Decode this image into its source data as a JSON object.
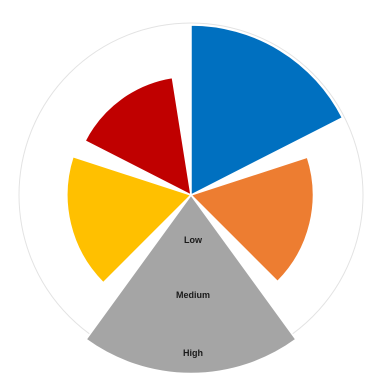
{
  "chart_data": {
    "type": "pie",
    "variant": "polar-area",
    "outer_ring": true,
    "slices": [
      {
        "start_deg": 0,
        "end_deg": 63,
        "value": 1.0,
        "color": "#0070C0"
      },
      {
        "start_deg": 72,
        "end_deg": 135,
        "value": 0.72,
        "color": "#ED7D31"
      },
      {
        "start_deg": 144,
        "end_deg": 216,
        "value": 1.05,
        "color": "#A5A5A5"
      },
      {
        "start_deg": 225,
        "end_deg": 288,
        "value": 0.73,
        "color": "#FFC000"
      },
      {
        "start_deg": 297,
        "end_deg": 351,
        "value": 0.7,
        "color": "#C00000"
      }
    ],
    "scale_labels": [
      "Low",
      "Medium",
      "High"
    ],
    "scale_levels": [
      0.33,
      0.67,
      1.0
    ]
  }
}
